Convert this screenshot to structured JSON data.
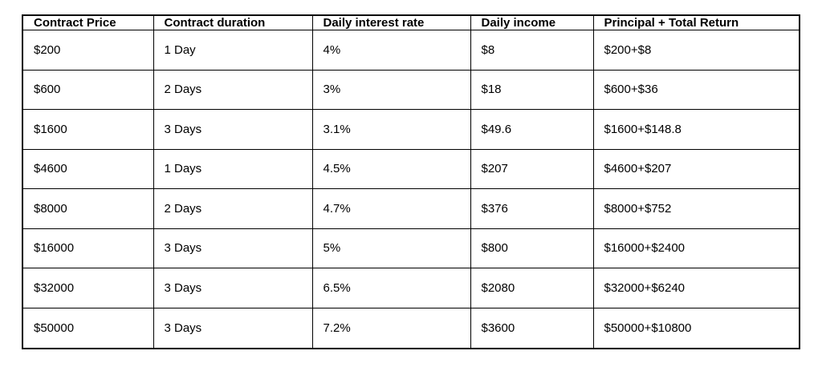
{
  "table": {
    "name": "contract-pricing-table",
    "headers": [
      "Contract Price",
      "Contract duration",
      "Daily interest rate",
      "Daily income",
      "Principal + Total Return"
    ],
    "rows": [
      [
        "$200",
        "1 Day",
        "4%",
        "$8",
        "$200+$8"
      ],
      [
        "$600",
        "2 Days",
        "3%",
        "$18",
        "$600+$36"
      ],
      [
        "$1600",
        "3 Days",
        "3.1%",
        "$49.6",
        "$1600+$148.8"
      ],
      [
        "$4600",
        "1 Days",
        "4.5%",
        "$207",
        "$4600+$207"
      ],
      [
        "$8000",
        "2 Days",
        "4.7%",
        "$376",
        "$8000+$752"
      ],
      [
        "$16000",
        "3 Days",
        "5%",
        "$800",
        "$16000+$2400"
      ],
      [
        "$32000",
        "3 Days",
        "6.5%",
        "$2080",
        "$32000+$6240"
      ],
      [
        "$50000",
        "3 Days",
        "7.2%",
        "$3600",
        "$50000+$10800"
      ]
    ],
    "colors": {
      "border": "#000000",
      "text": "#000000",
      "background": "#ffffff"
    }
  }
}
